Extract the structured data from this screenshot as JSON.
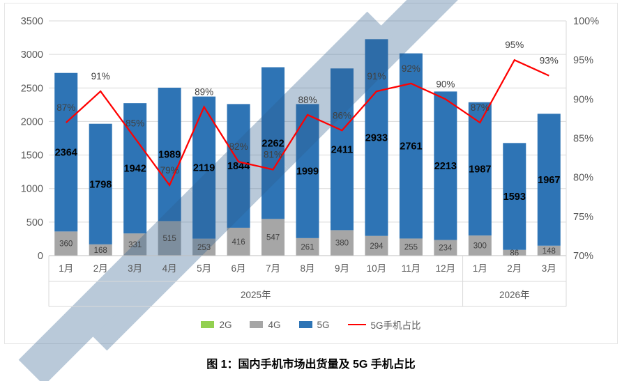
{
  "figure_title": "图 1：国内手机市场出货量及 5G 手机占比",
  "chart_data": {
    "type": "bar",
    "subtype": "stacked-bars-with-percentage-line",
    "categories": [
      "1月",
      "2月",
      "3月",
      "4月",
      "5月",
      "6月",
      "7月",
      "8月",
      "9月",
      "10月",
      "11月",
      "12月",
      "1月",
      "2月",
      "3月"
    ],
    "category_groups": [
      {
        "label": "2025年",
        "count": 12
      },
      {
        "label": "2026年",
        "count": 3
      }
    ],
    "series": [
      {
        "name": "2G",
        "color": "#92d050",
        "values": [
          0,
          0,
          0,
          0,
          0,
          0,
          0,
          0,
          0,
          0,
          0,
          0,
          0,
          0,
          0
        ]
      },
      {
        "name": "4G",
        "color": "#a6a6a6",
        "values": [
          360,
          168,
          331,
          515,
          253,
          416,
          547,
          261,
          380,
          294,
          255,
          234,
          300,
          86,
          148
        ]
      },
      {
        "name": "5G",
        "color": "#2e74b5",
        "values": [
          2364,
          1798,
          1942,
          1989,
          2119,
          1844,
          2262,
          1999,
          2411,
          2933,
          2761,
          2213,
          1987,
          1593,
          1967
        ]
      }
    ],
    "line_series": {
      "name": "5G手机占比",
      "color": "#ff0000",
      "values_pct": [
        87,
        91,
        85,
        79,
        89,
        82,
        81,
        88,
        86,
        91,
        92,
        90,
        87,
        95,
        93
      ],
      "labels": [
        "87%",
        "91%",
        "85%",
        "79%",
        "89%",
        "82%",
        "81%",
        "88%",
        "86%",
        "91%",
        "92%",
        "90%",
        "87%",
        "95%",
        "93%"
      ]
    },
    "left_axis": {
      "min": 0,
      "max": 3500,
      "step": 500,
      "tick_labels": [
        "0",
        "500",
        "1000",
        "1500",
        "2000",
        "2500",
        "3000",
        "3500"
      ]
    },
    "right_axis": {
      "min": 70,
      "max": 100,
      "step": 5,
      "tick_labels": [
        "70%",
        "75%",
        "80%",
        "85%",
        "90%",
        "95%",
        "100%"
      ]
    },
    "grid": true,
    "legend_position": "bottom"
  },
  "watermark": {
    "present": true,
    "color": "#2d5e8f"
  }
}
